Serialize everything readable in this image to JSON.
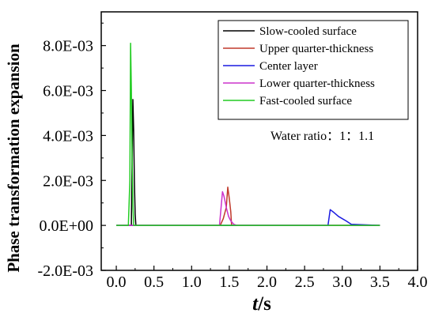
{
  "chart_data": {
    "type": "line",
    "title": "",
    "xlabel_main": "t",
    "xlabel_unit": "/s",
    "ylabel": "Phase transformation expansion",
    "xlim": [
      -0.2,
      4.0
    ],
    "ylim": [
      -0.002,
      0.0095
    ],
    "xticks": [
      0.0,
      0.5,
      1.0,
      1.5,
      2.0,
      2.5,
      3.0,
      3.5,
      4.0
    ],
    "xtick_labels": [
      "0.0",
      "0.5",
      "1.0",
      "1.5",
      "2.0",
      "2.5",
      "3.0",
      "3.5",
      "4.0"
    ],
    "yticks": [
      -0.002,
      0.0,
      0.002,
      0.004,
      0.006,
      0.008
    ],
    "ytick_labels": [
      "-2.0E-03",
      "0.0E+00",
      "2.0E-03",
      "4.0E-03",
      "6.0E-03",
      "8.0E-03"
    ],
    "grid": false,
    "legend_position": "top-right",
    "annotation": "Water ratio：1：1.1",
    "series": [
      {
        "name": "Slow-cooled surface",
        "color": "#000000",
        "x": [
          0.0,
          0.19,
          0.2,
          0.21,
          0.22,
          0.23,
          0.24,
          0.25,
          0.26,
          3.5
        ],
        "y": [
          0.0,
          0.0,
          0.0,
          0.003,
          0.0056,
          0.0042,
          0.002,
          0.0005,
          0.0,
          0.0
        ]
      },
      {
        "name": "Upper quarter-thickness",
        "color": "#c0392b",
        "x": [
          0.0,
          1.38,
          1.42,
          1.46,
          1.48,
          1.5,
          1.52,
          1.53,
          3.5
        ],
        "y": [
          0.0,
          0.0,
          0.0003,
          0.0008,
          0.0017,
          0.0012,
          0.0006,
          0.0,
          0.0
        ]
      },
      {
        "name": "Center layer",
        "color": "#1a1ae0",
        "x": [
          0.0,
          2.81,
          2.84,
          2.88,
          2.95,
          3.05,
          3.12,
          3.5
        ],
        "y": [
          0.0,
          0.0,
          0.0007,
          0.0006,
          0.0004,
          0.0002,
          5e-05,
          0.0
        ]
      },
      {
        "name": "Lower quarter-thickness",
        "color": "#cc33cc",
        "x": [
          0.0,
          1.37,
          1.41,
          1.43,
          1.46,
          1.49,
          1.52,
          1.56,
          1.6,
          3.5
        ],
        "y": [
          0.0,
          0.0,
          0.0015,
          0.0013,
          0.0008,
          0.0004,
          0.0002,
          5e-05,
          0.0,
          0.0
        ]
      },
      {
        "name": "Fast-cooled surface",
        "color": "#22cc22",
        "x": [
          0.0,
          0.16,
          0.18,
          0.19,
          0.2,
          0.21,
          0.22,
          0.23,
          3.5
        ],
        "y": [
          0.0,
          0.0,
          0.002,
          0.0081,
          0.006,
          0.003,
          0.001,
          0.0,
          0.0
        ]
      }
    ]
  }
}
